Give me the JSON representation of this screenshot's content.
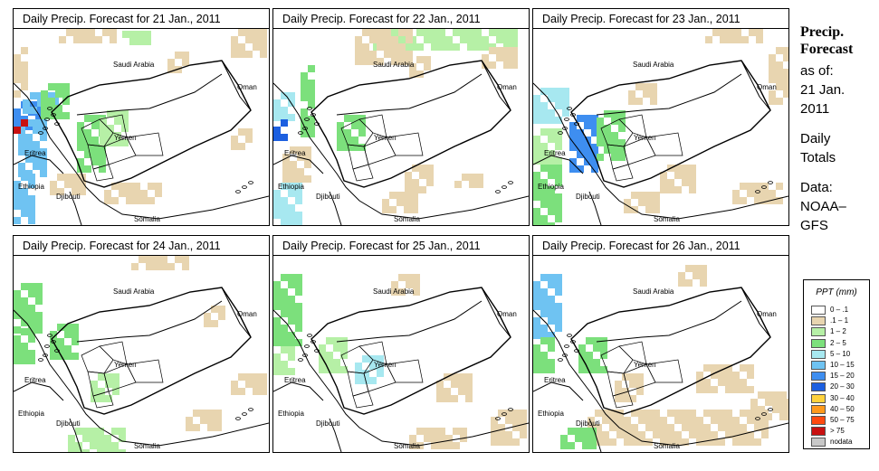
{
  "panels": [
    {
      "title": "Daily Precip. Forecast for  21 Jan., 2011"
    },
    {
      "title": "Daily Precip. Forecast for  22 Jan., 2011"
    },
    {
      "title": "Daily Precip. Forecast for  23 Jan., 2011"
    },
    {
      "title": "Daily Precip. Forecast for  24 Jan., 2011"
    },
    {
      "title": "Daily Precip. Forecast for  25 Jan., 2011"
    },
    {
      "title": "Daily Precip. Forecast for  26 Jan., 2011"
    }
  ],
  "map_labels": {
    "saudi": "Saudi Arabia",
    "oman": "Oman",
    "yemen": "Yemen",
    "eritrea": "Eritrea",
    "ethiopia": "Ethiopia",
    "djibouti": "Djibouti",
    "somalia": "Somalia"
  },
  "side": {
    "title_line1": "Precip.",
    "title_line2": "Forecast",
    "asof_line1": "as of:",
    "asof_line2": "21 Jan.",
    "asof_line3": "2011",
    "totals_line1": "Daily",
    "totals_line2": "Totals",
    "source_line1": "Data:",
    "source_line2": "NOAA–",
    "source_line3": "GFS"
  },
  "legend": {
    "title": "PPT (mm)",
    "items": [
      {
        "label": "0 – .1",
        "color": "#ffffff"
      },
      {
        "label": ".1 – 1",
        "color": "#e8d5b0"
      },
      {
        "label": "1 – 2",
        "color": "#b6f0a6"
      },
      {
        "label": "2 – 5",
        "color": "#7ce07c"
      },
      {
        "label": "5 – 10",
        "color": "#a7e8f0"
      },
      {
        "label": "10 – 15",
        "color": "#6fc3f2"
      },
      {
        "label": "15 – 20",
        "color": "#3e8ef0"
      },
      {
        "label": "20 – 30",
        "color": "#1c5fe0"
      },
      {
        "label": "30 – 40",
        "color": "#ffd23c"
      },
      {
        "label": "40 – 50",
        "color": "#ff9a1c"
      },
      {
        "label": "50 – 75",
        "color": "#ff4a10"
      },
      {
        "label": "> 75",
        "color": "#c81010"
      },
      {
        "label": "nodata",
        "color": "#c8c8c8"
      }
    ]
  }
}
